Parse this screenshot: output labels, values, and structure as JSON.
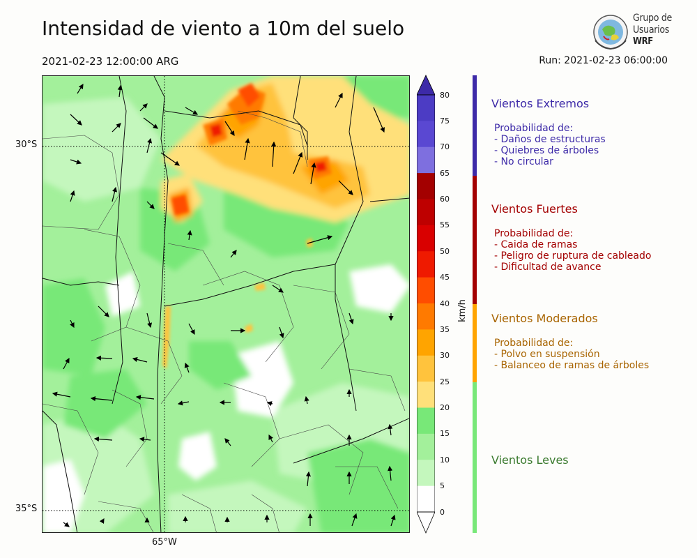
{
  "header": {
    "title": "Intensidad de viento a 10m del suelo",
    "valid_time": "2021-02-23 12:00:00 ARG",
    "run": "Run: 2021-02-23 06:00:00"
  },
  "logo": {
    "line1": "Grupo de",
    "line2": "Usuarios",
    "line3": "WRF"
  },
  "axes": {
    "lat_labels": [
      "30°S",
      "35°S"
    ],
    "lon_labels": [
      "65°W"
    ]
  },
  "colorbar": {
    "unit": "km/h",
    "ticks": [
      "80",
      "75",
      "70",
      "65",
      "60",
      "55",
      "50",
      "45",
      "40",
      "35",
      "30",
      "25",
      "20",
      "15",
      "10",
      "5",
      "0"
    ],
    "colors": [
      "#3d2aa8",
      "#4c3cc4",
      "#5a48d2",
      "#7e6fdf",
      "#a30000",
      "#be0000",
      "#d90000",
      "#ef1a00",
      "#ff4d00",
      "#ff7a00",
      "#ffa400",
      "#ffc33d",
      "#ffe07a",
      "#78e878",
      "#a3f09b",
      "#c4f7bd",
      "#ffffff"
    ]
  },
  "categories": [
    {
      "title": "Vientos Extremos",
      "color": "#3d2aa8",
      "subtitle": "Probabilidad de:",
      "items": [
        "- Daños de estructuras",
        "- Quiebres de árboles",
        "- No circular"
      ]
    },
    {
      "title": "Vientos Fuertes",
      "color": "#a30000",
      "subtitle": "Probabilidad de:",
      "items": [
        "- Caida de ramas",
        "- Peligro de ruptura de cableado",
        "- Dificultad de avance"
      ]
    },
    {
      "title": "Vientos Moderados",
      "color": "#a86400",
      "bar_color": "#ffa400",
      "subtitle": "Probabilidad de:",
      "items": [
        "- Polvo en suspensión",
        "- Balanceo de ramas de árboles"
      ]
    },
    {
      "title": "Vientos Leves",
      "color": "#3a7a2e",
      "bar_color": "#78e878",
      "subtitle": "",
      "items": []
    }
  ]
}
